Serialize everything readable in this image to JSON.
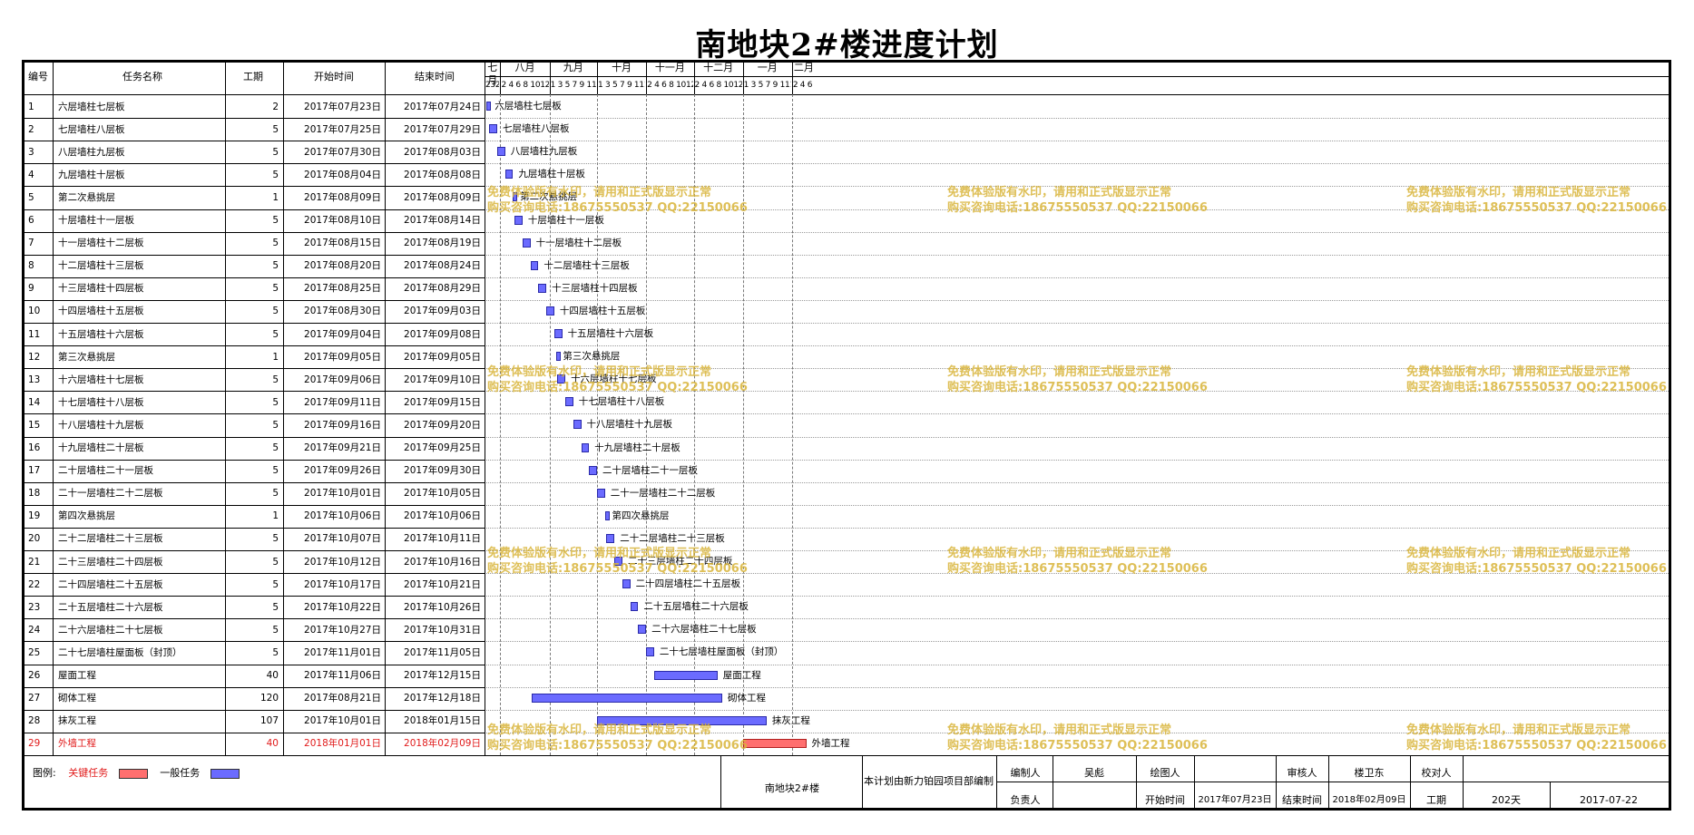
{
  "title": "南地块2#楼进度计划",
  "columns": {
    "id": "编号",
    "name": "任务名称",
    "duration": "工期",
    "start": "开始时间",
    "end": "结束时间"
  },
  "months": [
    "七月",
    "八月",
    "九月",
    "十月",
    "十一月",
    "十二月",
    "一月",
    "二月"
  ],
  "day_rows": [
    "23252729 31",
    "2 4 6 8 10121416182022242628 30",
    "1 3 5 7 9 1113151719212325272 9",
    "1 3 5 7 9 1113151719212325272931",
    "2 4 6 8 1012141618202224262830",
    "2 4 6 8 1012141618202224262830",
    "1 3 5 7 9 1113151719212325272931",
    "2 4 6 8 10121416"
  ],
  "chart_data": {
    "type": "gantt",
    "title": "南地块2#楼进度计划",
    "timeline_start": "2017-07-22",
    "timeline_end": "2018-02-16",
    "tasks": [
      {
        "id": "1",
        "name": "六层墙柱七层板",
        "duration": "2",
        "start": "2017年07月23日",
        "end": "2017年07月24日",
        "s": "2017-07-23",
        "e": "2017-07-24",
        "critical": false
      },
      {
        "id": "2",
        "name": "七层墙柱八层板",
        "duration": "5",
        "start": "2017年07月25日",
        "end": "2017年07月29日",
        "s": "2017-07-25",
        "e": "2017-07-29",
        "critical": false
      },
      {
        "id": "3",
        "name": "八层墙柱九层板",
        "duration": "5",
        "start": "2017年07月30日",
        "end": "2017年08月03日",
        "s": "2017-07-30",
        "e": "2017-08-03",
        "critical": false
      },
      {
        "id": "4",
        "name": "九层墙柱十层板",
        "duration": "5",
        "start": "2017年08月04日",
        "end": "2017年08月08日",
        "s": "2017-08-04",
        "e": "2017-08-08",
        "critical": false
      },
      {
        "id": "5",
        "name": "第二次悬挑层",
        "duration": "1",
        "start": "2017年08月09日",
        "end": "2017年08月09日",
        "s": "2017-08-09",
        "e": "2017-08-09",
        "critical": false
      },
      {
        "id": "6",
        "name": "十层墙柱十一层板",
        "duration": "5",
        "start": "2017年08月10日",
        "end": "2017年08月14日",
        "s": "2017-08-10",
        "e": "2017-08-14",
        "critical": false
      },
      {
        "id": "7",
        "name": "十一层墙柱十二层板",
        "duration": "5",
        "start": "2017年08月15日",
        "end": "2017年08月19日",
        "s": "2017-08-15",
        "e": "2017-08-19",
        "critical": false
      },
      {
        "id": "8",
        "name": "十二层墙柱十三层板",
        "duration": "5",
        "start": "2017年08月20日",
        "end": "2017年08月24日",
        "s": "2017-08-20",
        "e": "2017-08-24",
        "critical": false
      },
      {
        "id": "9",
        "name": "十三层墙柱十四层板",
        "duration": "5",
        "start": "2017年08月25日",
        "end": "2017年08月29日",
        "s": "2017-08-25",
        "e": "2017-08-29",
        "critical": false
      },
      {
        "id": "10",
        "name": "十四层墙柱十五层板",
        "duration": "5",
        "start": "2017年08月30日",
        "end": "2017年09月03日",
        "s": "2017-08-30",
        "e": "2017-09-03",
        "critical": false
      },
      {
        "id": "11",
        "name": "十五层墙柱十六层板",
        "duration": "5",
        "start": "2017年09月04日",
        "end": "2017年09月08日",
        "s": "2017-09-04",
        "e": "2017-09-08",
        "critical": false
      },
      {
        "id": "12",
        "name": "第三次悬挑层",
        "duration": "1",
        "start": "2017年09月05日",
        "end": "2017年09月05日",
        "s": "2017-09-05",
        "e": "2017-09-05",
        "critical": false
      },
      {
        "id": "13",
        "name": "十六层墙柱十七层板",
        "duration": "5",
        "start": "2017年09月06日",
        "end": "2017年09月10日",
        "s": "2017-09-06",
        "e": "2017-09-10",
        "critical": false
      },
      {
        "id": "14",
        "name": "十七层墙柱十八层板",
        "duration": "5",
        "start": "2017年09月11日",
        "end": "2017年09月15日",
        "s": "2017-09-11",
        "e": "2017-09-15",
        "critical": false
      },
      {
        "id": "15",
        "name": "十八层墙柱十九层板",
        "duration": "5",
        "start": "2017年09月16日",
        "end": "2017年09月20日",
        "s": "2017-09-16",
        "e": "2017-09-20",
        "critical": false
      },
      {
        "id": "16",
        "name": "十九层墙柱二十层板",
        "duration": "5",
        "start": "2017年09月21日",
        "end": "2017年09月25日",
        "s": "2017-09-21",
        "e": "2017-09-25",
        "critical": false
      },
      {
        "id": "17",
        "name": "二十层墙柱二十一层板",
        "duration": "5",
        "start": "2017年09月26日",
        "end": "2017年09月30日",
        "s": "2017-09-26",
        "e": "2017-09-30",
        "critical": false
      },
      {
        "id": "18",
        "name": "二十一层墙柱二十二层板",
        "duration": "5",
        "start": "2017年10月01日",
        "end": "2017年10月05日",
        "s": "2017-10-01",
        "e": "2017-10-05",
        "critical": false
      },
      {
        "id": "19",
        "name": "第四次悬挑层",
        "duration": "1",
        "start": "2017年10月06日",
        "end": "2017年10月06日",
        "s": "2017-10-06",
        "e": "2017-10-06",
        "critical": false
      },
      {
        "id": "20",
        "name": "二十二层墙柱二十三层板",
        "duration": "5",
        "start": "2017年10月07日",
        "end": "2017年10月11日",
        "s": "2017-10-07",
        "e": "2017-10-11",
        "critical": false
      },
      {
        "id": "21",
        "name": "二十三层墙柱二十四层板",
        "duration": "5",
        "start": "2017年10月12日",
        "end": "2017年10月16日",
        "s": "2017-10-12",
        "e": "2017-10-16",
        "critical": false
      },
      {
        "id": "22",
        "name": "二十四层墙柱二十五层板",
        "duration": "5",
        "start": "2017年10月17日",
        "end": "2017年10月21日",
        "s": "2017-10-17",
        "e": "2017-10-21",
        "critical": false
      },
      {
        "id": "23",
        "name": "二十五层墙柱二十六层板",
        "duration": "5",
        "start": "2017年10月22日",
        "end": "2017年10月26日",
        "s": "2017-10-22",
        "e": "2017-10-26",
        "critical": false
      },
      {
        "id": "24",
        "name": "二十六层墙柱二十七层板",
        "duration": "5",
        "start": "2017年10月27日",
        "end": "2017年10月31日",
        "s": "2017-10-27",
        "e": "2017-10-31",
        "critical": false
      },
      {
        "id": "25",
        "name": "二十七层墙柱屋面板（封顶）",
        "duration": "5",
        "start": "2017年11月01日",
        "end": "2017年11月05日",
        "s": "2017-11-01",
        "e": "2017-11-05",
        "critical": false
      },
      {
        "id": "26",
        "name": "屋面工程",
        "duration": "40",
        "start": "2017年11月06日",
        "end": "2017年12月15日",
        "s": "2017-11-06",
        "e": "2017-12-15",
        "critical": false
      },
      {
        "id": "27",
        "name": "砌体工程",
        "duration": "120",
        "start": "2017年08月21日",
        "end": "2017年12月18日",
        "s": "2017-08-21",
        "e": "2017-12-18",
        "critical": false
      },
      {
        "id": "28",
        "name": "抹灰工程",
        "duration": "107",
        "start": "2017年10月01日",
        "end": "2018年01月15日",
        "s": "2017-10-01",
        "e": "2018-01-15",
        "critical": false
      },
      {
        "id": "29",
        "name": "外墙工程",
        "duration": "40",
        "start": "2018年01月01日",
        "end": "2018年02月09日",
        "s": "2018-01-01",
        "e": "2018-02-09",
        "critical": true
      }
    ]
  },
  "legend": {
    "label": "图例:",
    "critical": "关键任务",
    "normal": "一般任务",
    "critical_color": "#ff6f6f",
    "normal_color": "#6b6bff"
  },
  "footer": {
    "project": "南地块2#楼",
    "note": "本计划由新力铂园项目部编制",
    "editor_label": "编制人",
    "editor": "吴彪",
    "drawer_label": "绘图人",
    "drawer": "",
    "reviewer_label": "审核人",
    "reviewer": "楼卫东",
    "checker_label": "校对人",
    "checker": "",
    "owner_label": "负责人",
    "owner": "",
    "start_label": "开始时间",
    "start": "2017年07月23日",
    "end_label": "结束时间",
    "end": "2018年02月09日",
    "duration_label": "工期",
    "duration": "202天",
    "date": "2017-07-22"
  },
  "watermark": {
    "line1": "免费体验版有水印，请用和正式版显示正常",
    "line2": "购买咨询电话:18675550537 QQ:22150066"
  }
}
